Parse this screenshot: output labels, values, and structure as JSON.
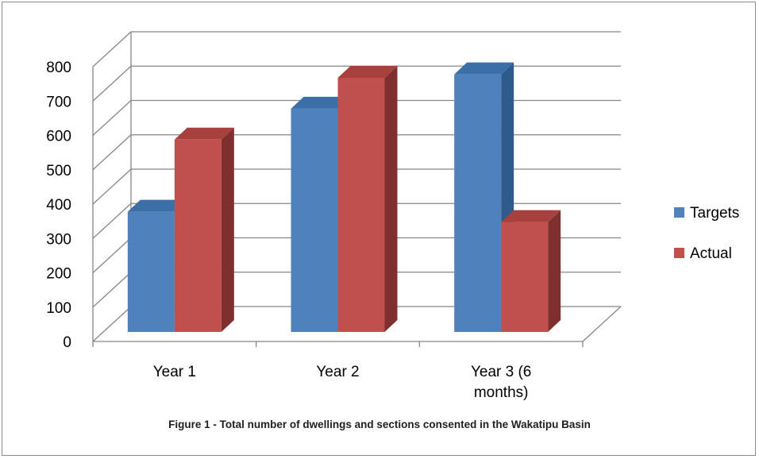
{
  "caption": "Figure 1 - Total number of dwellings and sections consented in the Wakatipu Basin",
  "chart_data": {
    "type": "bar",
    "style": "3d-clustered-column",
    "categories": [
      "Year 1",
      "Year 2",
      "Year 3 (6 months)"
    ],
    "category_lines": [
      [
        "Year 1"
      ],
      [
        "Year 2"
      ],
      [
        "Year 3 (6",
        "months)"
      ]
    ],
    "series": [
      {
        "name": "Targets",
        "values": [
          350,
          650,
          750
        ],
        "color": "#4f81bd",
        "top_color": "#3c6fa8",
        "side_color": "#2f5a8c"
      },
      {
        "name": "Actual",
        "values": [
          560,
          740,
          320
        ],
        "color": "#c0504d",
        "top_color": "#a8413e",
        "side_color": "#7f302e"
      }
    ],
    "ylim": [
      0,
      800
    ],
    "yticks": [
      0,
      100,
      200,
      300,
      400,
      500,
      600,
      700,
      800
    ],
    "grid": true,
    "legend": "right"
  }
}
